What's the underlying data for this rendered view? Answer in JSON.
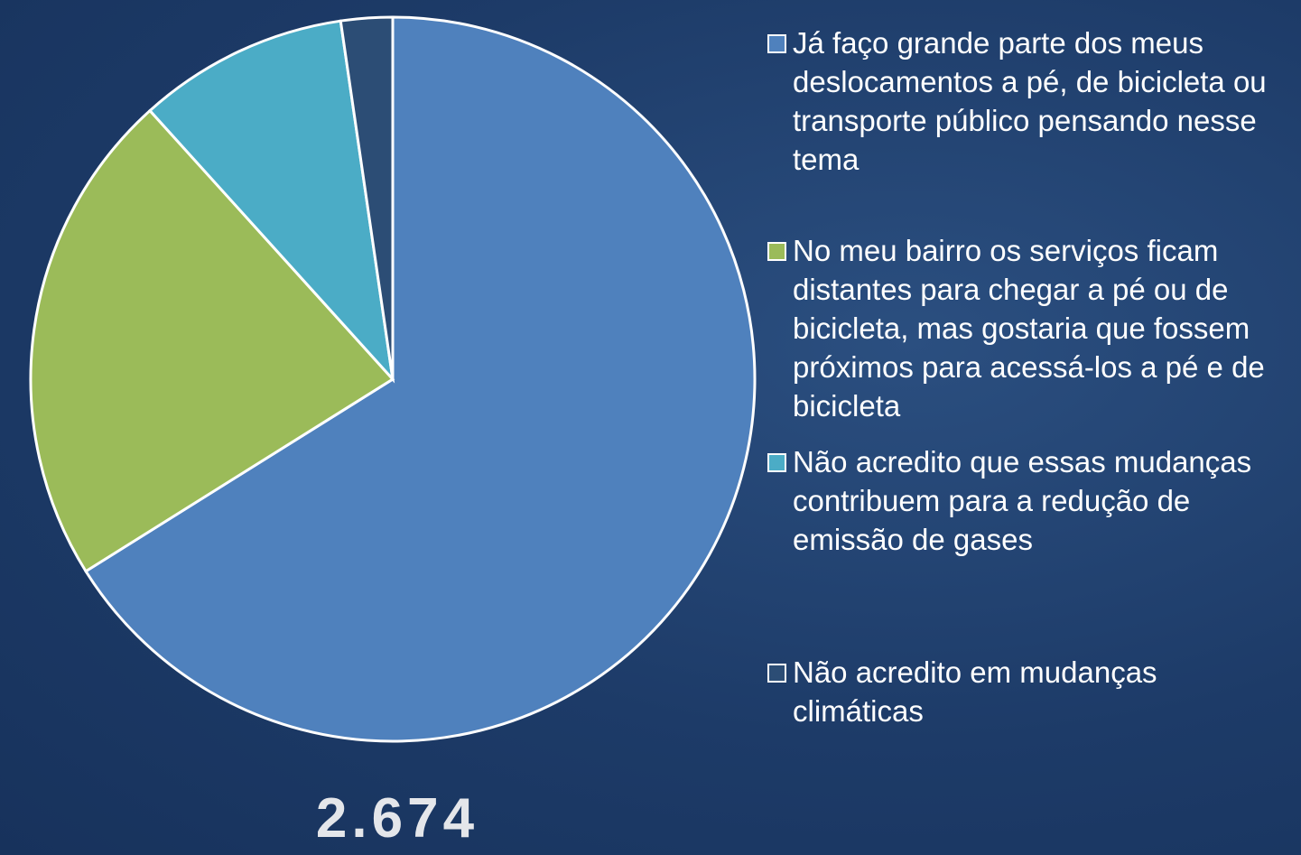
{
  "chart_data": {
    "type": "pie",
    "categories": [
      "Já faço grande parte dos meus deslocamentos a pé, de bicicleta ou transporte público pensando nesse tema",
      "No meu bairro os serviços ficam distantes para chegar a pé ou de bicicleta, mas gostaria que fossem próximos para acessá-los a pé e de bicicleta",
      "Não acredito que essas mudanças contribuem para a redução de emissão de gases",
      "Não acredito em mudanças climáticas"
    ],
    "values": [
      66.1,
      22.2,
      9.4,
      2.3
    ],
    "colors": [
      "#4f81bd",
      "#9bbb59",
      "#4bacc6",
      "#2c4d75"
    ],
    "total_label": "2.674"
  }
}
